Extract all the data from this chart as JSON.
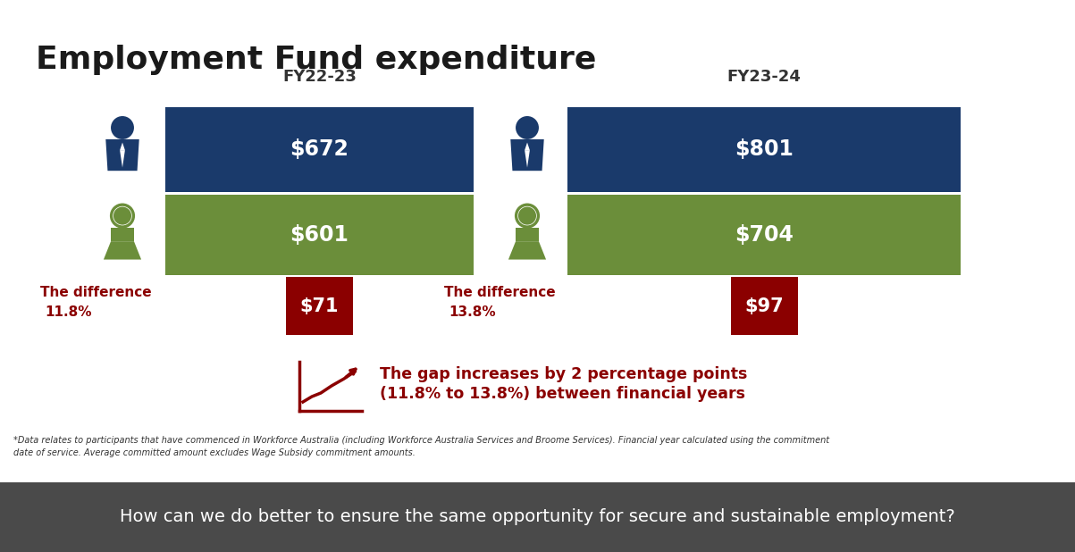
{
  "title": "Employment Fund expenditure",
  "title_fontsize": 26,
  "title_fontweight": "bold",
  "background_color": "#ffffff",
  "fy1_label": "FY22-23",
  "fy2_label": "FY23-24",
  "fy1_male": 672,
  "fy1_female": 601,
  "fy1_diff": 71,
  "fy1_diff_pct": "11.8%",
  "fy2_male": 801,
  "fy2_female": 704,
  "fy2_diff": 97,
  "fy2_diff_pct": "13.8%",
  "color_navy": "#1a3a6b",
  "color_green": "#6b8e3a",
  "color_dark_red": "#8b0000",
  "bar_text_color": "#ffffff",
  "gap_text_line1": "The gap increases by 2 percentage points",
  "gap_text_line2": "(11.8% to 13.8%) between financial years",
  "footnote_line1": "*Data relates to participants that have commenced in Workforce Australia (including Workforce Australia Services and Broome Services). Financial year calculated using the commitment",
  "footnote_line2": "date of service. Average committed amount excludes Wage Subsidy commitment amounts.",
  "bottom_bar_text": "How can we do better to ensure the same opportunity for secure and sustainable employment?",
  "bottom_bar_color": "#4a4a4a",
  "bottom_bar_text_color": "#ffffff",
  "diff_label": "The difference",
  "color_label_red": "#8b0000"
}
